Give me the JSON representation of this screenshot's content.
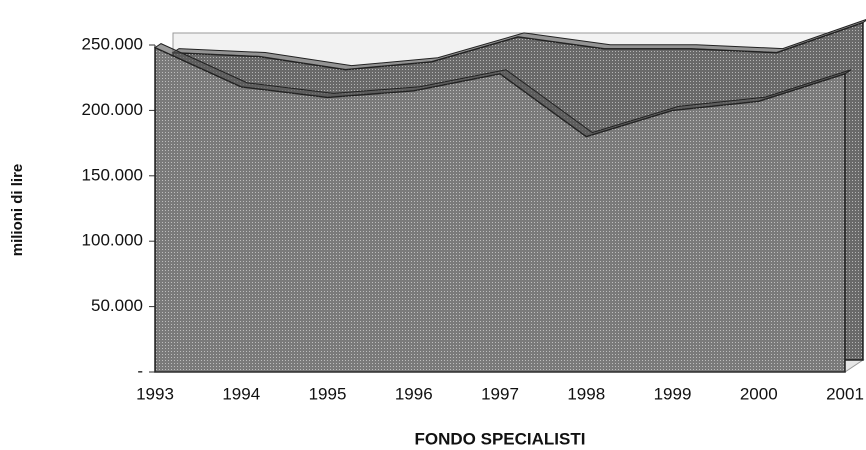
{
  "chart_data": {
    "type": "area3d",
    "xlabel": "FONDO SPECIALISTI",
    "ylabel": "milioni di lire",
    "categories": [
      "1993",
      "1994",
      "1995",
      "1996",
      "1997",
      "1998",
      "1999",
      "2000",
      "2001"
    ],
    "series": [
      {
        "color": "#8c8c8c",
        "values": [
          235000,
          232000,
          222000,
          228000,
          247000,
          238000,
          238000,
          235000,
          258000
        ]
      },
      {
        "color": "#a3a3a3",
        "values": [
          248000,
          218000,
          210000,
          215000,
          228000,
          180000,
          200000,
          207000,
          228000
        ]
      }
    ],
    "ylim": [
      0,
      250000
    ],
    "yticks": [
      {
        "value": 0,
        "label": "-"
      },
      {
        "value": 50000,
        "label": "50.000"
      },
      {
        "value": 100000,
        "label": "100.000"
      },
      {
        "value": 150000,
        "label": "150.000"
      },
      {
        "value": 200000,
        "label": "200.000"
      },
      {
        "value": 250000,
        "label": "250.000"
      }
    ]
  }
}
